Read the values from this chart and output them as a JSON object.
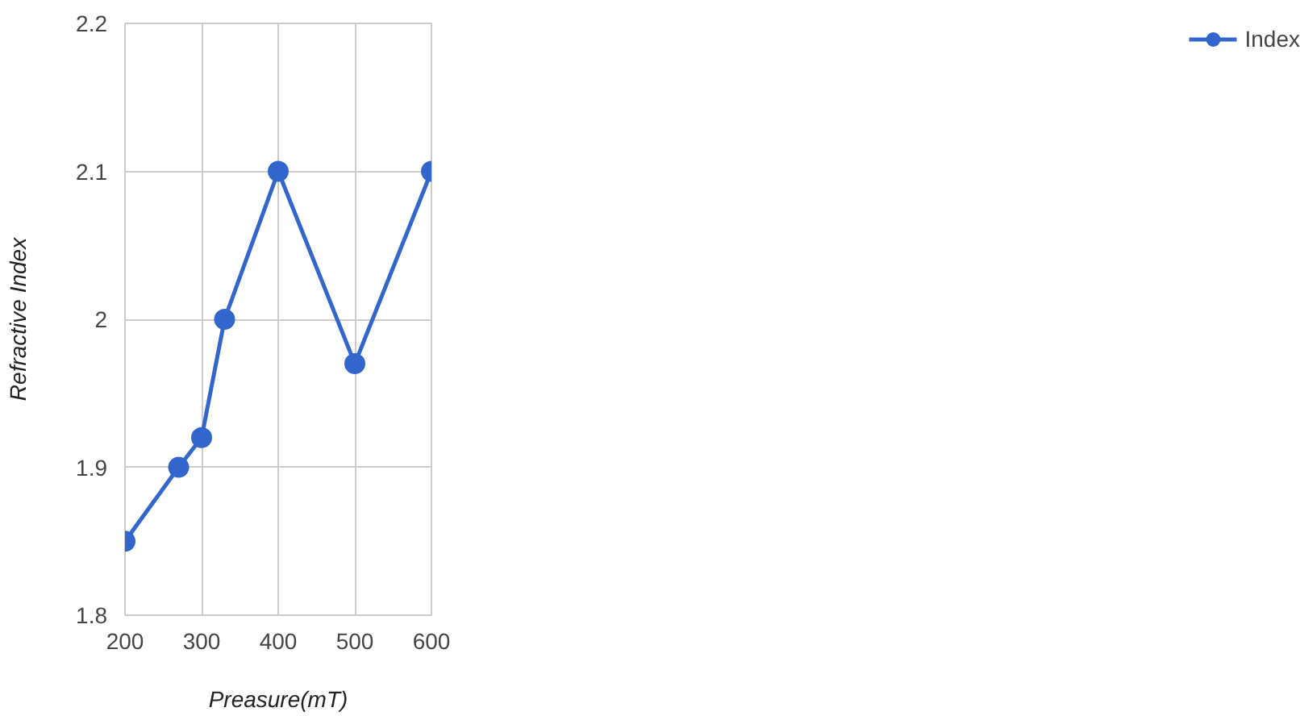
{
  "chart_data": {
    "type": "line",
    "xlabel": "Preasure(mT)",
    "ylabel": "Refractive Index",
    "x": [
      200,
      270,
      300,
      330,
      400,
      500,
      600
    ],
    "series": [
      {
        "name": "Index",
        "color": "#3366cc",
        "values": [
          1.85,
          1.9,
          1.92,
          2.0,
          2.1,
          1.97,
          2.1
        ]
      }
    ],
    "xlim": [
      200,
      600
    ],
    "xticks": [
      200,
      300,
      400,
      500,
      600
    ],
    "ylim": [
      1.8,
      2.2
    ],
    "yticks": [
      1.8,
      1.9,
      {
        "value": 2.0,
        "label": "2"
      },
      2.1,
      2.2
    ],
    "grid": true,
    "legend": "top right",
    "marker": "circle",
    "line_style": "solid"
  }
}
